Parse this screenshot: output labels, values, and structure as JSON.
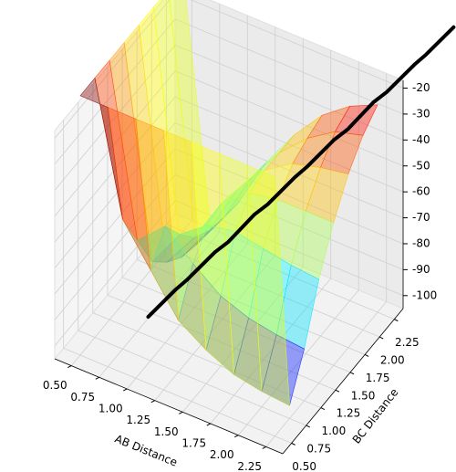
{
  "chart_data": {
    "type": "surface3d",
    "xlabel": "AB Distance",
    "ylabel": "BC Distance",
    "x": [
      0.5,
      0.75,
      1.0,
      1.25,
      1.5,
      1.75,
      2.0,
      2.25
    ],
    "y": [
      0.5,
      0.75,
      1.0,
      1.25,
      1.5,
      1.75,
      2.0,
      2.25
    ],
    "z": [
      [
        -5,
        -5,
        -5,
        -5,
        -5,
        -5,
        -5,
        -5
      ],
      [
        -5,
        -55,
        -70,
        -85,
        -92,
        -97,
        -99,
        -100
      ],
      [
        -5,
        -70,
        -60,
        -70,
        -78,
        -82,
        -84,
        -85
      ],
      [
        -5,
        -85,
        -70,
        -62,
        -60,
        -62,
        -64,
        -65
      ],
      [
        -5,
        -92,
        -78,
        -60,
        -52,
        -50,
        -50,
        -50
      ],
      [
        -5,
        -97,
        -82,
        -62,
        -50,
        -43,
        -40,
        -38
      ],
      [
        -5,
        -99,
        -84,
        -64,
        -50,
        -40,
        -33,
        -30
      ],
      [
        -5,
        -100,
        -85,
        -65,
        -50,
        -38,
        -30,
        -25
      ]
    ],
    "colormap": "jet",
    "xlim": [
      0.35,
      2.4
    ],
    "ylim": [
      0.35,
      2.4
    ],
    "zlim": [
      -105,
      -17
    ],
    "xticks": [
      {
        "value": 0.5,
        "label": "0.50"
      },
      0.75,
      {
        "value": 1.0,
        "label": "1.00"
      },
      1.25,
      {
        "value": 1.5,
        "label": "1.50"
      },
      1.75,
      {
        "value": 2.0,
        "label": "2.00"
      },
      2.25
    ],
    "yticks": [
      {
        "value": 0.5,
        "label": "0.50"
      },
      0.75,
      {
        "value": 1.0,
        "label": "1.00"
      },
      1.25,
      {
        "value": 1.5,
        "label": "1.50"
      },
      1.75,
      {
        "value": 2.0,
        "label": "2.00"
      },
      2.25
    ],
    "zticks": [
      -100,
      -90,
      -80,
      -70,
      -60,
      -50,
      -40,
      -30,
      -20
    ],
    "grid": true,
    "trajectory": {
      "color": "#000000",
      "x": [
        0.8,
        0.91,
        1.01,
        1.12,
        1.23,
        1.33,
        1.44,
        1.55,
        1.65,
        1.76,
        1.87,
        1.97,
        2.08,
        2.19,
        2.29,
        2.4
      ],
      "y": [
        1.09,
        1.35,
        1.36,
        1.62,
        1.64,
        1.89,
        1.91,
        2.17,
        2.18,
        2.44,
        2.46,
        2.71,
        2.73,
        2.99,
        3.0,
        3.26
      ],
      "z": [
        -101,
        -95.6,
        -90.2,
        -84.8,
        -79.4,
        -74,
        -68.6,
        -63.2,
        -57.8,
        -52.4,
        -47,
        -41.6,
        -36.2,
        -30.8,
        -25.4,
        -20
      ]
    }
  }
}
